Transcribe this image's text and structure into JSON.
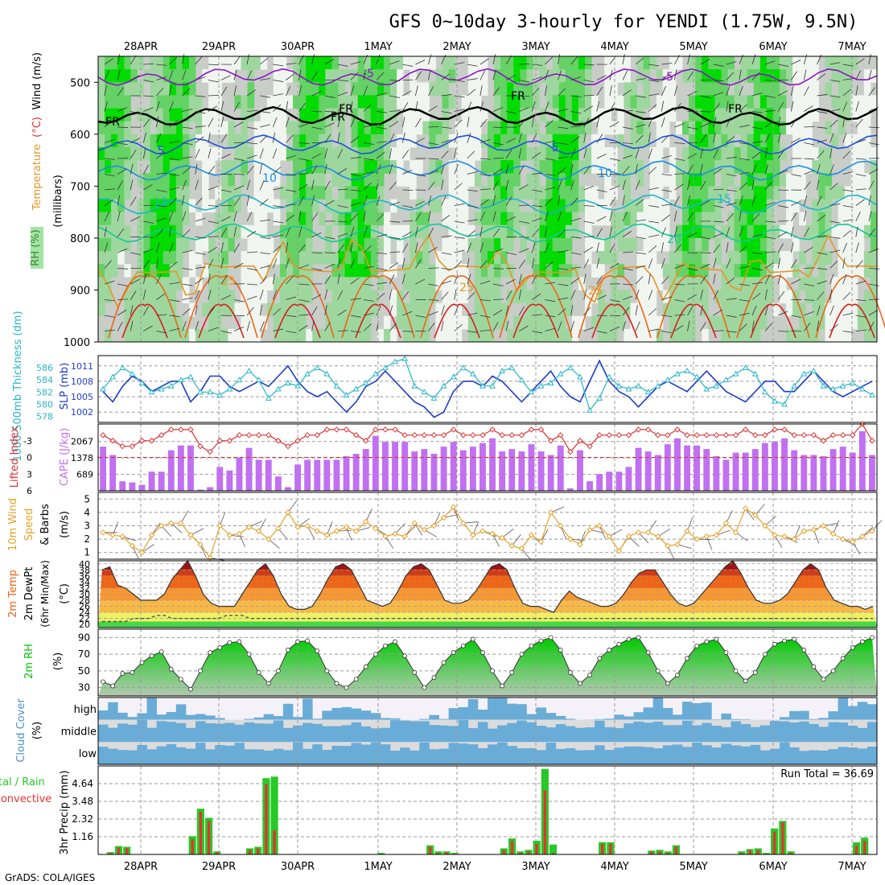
{
  "title": "GFS 0~10day 3-hourly for YENDI (1.75W, 9.5N)",
  "credit": "GrADS: COLA/IGES",
  "dates": [
    "28APR",
    "29APR",
    "30APR",
    "1MAY",
    "2MAY",
    "3MAY",
    "4MAY",
    "5MAY",
    "6MAY",
    "7MAY"
  ],
  "colors": {
    "rh_dark": "#00dc00",
    "rh_mid": "#64d264",
    "rh_light": "#9ed79e",
    "rh_pale": "#c8cdc8",
    "rh_white": "#f0f5f0",
    "slp": "#1e3cc8",
    "thickness": "#28b4c8",
    "lifted": "#dc3232",
    "cape": "#c070f0",
    "wind10": "#e6a028",
    "temp_warm": "#f06414",
    "temp_hot": "#a01414",
    "dew_band": "#f0f064",
    "rh2m": "#00c800",
    "cloud": "#6aacd8",
    "cloud_gap": "#dcdcdc",
    "rain_total": "#28c828",
    "rain_conv": "#e63232"
  },
  "chart_data": [
    {
      "name": "upper",
      "type": "heatmap",
      "ylabel_parts": [
        "RH (%)",
        "Temperature",
        "(°C)",
        "Wind",
        "(m/s)"
      ],
      "ylabel_sub": "(millibars)",
      "yticks": [
        500,
        600,
        700,
        800,
        900,
        1000
      ],
      "ylim": [
        450,
        1000
      ],
      "isotherm_labels": [
        "-5",
        "-5",
        "FR",
        "FR",
        "FR",
        "FR",
        "FR",
        "5",
        "5",
        "10",
        "10",
        "15",
        "15",
        "20",
        "25",
        "25",
        "25"
      ],
      "isotherms": [
        {
          "value": -5,
          "p": 490
        },
        {
          "value": 0,
          "p": 565
        },
        {
          "value": 5,
          "p": 620
        },
        {
          "value": 10,
          "p": 670
        },
        {
          "value": 15,
          "p": 735
        },
        {
          "value": 20,
          "p": 790
        },
        {
          "value": 25,
          "p": 860
        }
      ]
    },
    {
      "name": "slp_thickness",
      "type": "line",
      "ylabel_left": "1000-500mb Thickness (dm)",
      "ylabel_right": "SLP (mb)",
      "yticks_left": [
        578,
        580,
        582,
        584,
        586
      ],
      "yticks_right": [
        1002,
        1005,
        1008,
        1011
      ],
      "slp": [
        1006,
        1004,
        1007,
        1009,
        1008,
        1006,
        1007,
        1008,
        1008,
        1004,
        1006,
        1009,
        1009,
        1007,
        1006,
        1007,
        1008,
        1007,
        1009,
        1011,
        1008,
        1006,
        1005,
        1006,
        1004,
        1002,
        1004,
        1007,
        1008,
        1010,
        1008,
        1006,
        1004,
        1003,
        1001,
        1002,
        1006,
        1008,
        1008,
        1007,
        1009,
        1008,
        1006,
        1004,
        1006,
        1008,
        1010,
        1007,
        1005,
        1004,
        1008,
        1012,
        1008,
        1006,
        1005,
        1003,
        1005,
        1007,
        1008,
        1007,
        1006,
        1008,
        1010,
        1008,
        1006,
        1005,
        1004,
        1006,
        1008,
        1008,
        1006,
        1006,
        1008,
        1010,
        1008,
        1006,
        1005,
        1006,
        1007,
        1008
      ],
      "thickness": [
        582.5,
        584.5,
        586,
        585,
        583.5,
        582,
        582.5,
        583,
        584,
        584.5,
        582,
        582,
        581.5,
        582.5,
        584,
        585.5,
        584,
        581,
        582.5,
        583.5,
        583,
        585,
        586,
        585,
        583,
        581.5,
        582.5,
        583.5,
        585,
        586,
        587,
        587.5,
        583,
        582,
        581,
        583,
        584.5,
        586,
        585,
        583,
        583,
        585.5,
        586,
        584,
        582,
        583,
        583.5,
        585,
        586,
        584.5,
        579,
        581,
        584.5,
        583,
        582.5,
        583,
        582,
        583,
        584,
        585,
        585.5,
        584.5,
        582.5,
        583,
        584,
        585,
        586,
        585,
        582,
        580.5,
        580,
        583,
        585,
        585.5,
        583,
        582.5,
        583,
        583.5,
        582.5,
        581.5
      ]
    },
    {
      "name": "cape_lifted",
      "type": "bar",
      "ylabel_left": "Lifted Index",
      "ylabel_right": "CAPE (J/kg)",
      "yticks_left": [
        "-3",
        "0",
        "3",
        "6"
      ],
      "yticks_right": [
        "689",
        "1378",
        "2067"
      ],
      "cape": [
        1850,
        1500,
        400,
        350,
        250,
        800,
        800,
        1700,
        1900,
        1900,
        50,
        150,
        1000,
        850,
        1400,
        1800,
        1300,
        1300,
        600,
        150,
        1100,
        1300,
        1300,
        1300,
        1300,
        1450,
        1550,
        1750,
        2300,
        2050,
        2050,
        2050,
        1650,
        1750,
        1550,
        1850,
        2050,
        1700,
        1850,
        2000,
        2200,
        1650,
        1750,
        1650,
        1950,
        1650,
        1500,
        1900,
        100,
        1700,
        400,
        700,
        800,
        800,
        1000,
        1800,
        1650,
        1500,
        1950,
        2200,
        1900,
        1900,
        1750,
        1450,
        1300,
        1600,
        1600,
        1750,
        2000,
        2050,
        2200,
        1700,
        1500,
        1500,
        1450,
        1750,
        1850,
        1600,
        2500,
        1500
      ],
      "lifted": [
        -4,
        -3,
        -2,
        -2,
        -3,
        -3,
        -4,
        -5,
        -5,
        -5,
        -2,
        -1,
        -3,
        -3,
        -4,
        -4,
        -4,
        -4,
        -3,
        -2,
        -3,
        -4,
        -4,
        -5,
        -5,
        -5,
        -4,
        -3,
        -5,
        -5,
        -5,
        -4,
        -4,
        -4,
        -4,
        -4,
        -5,
        -4,
        -4,
        -4,
        -5,
        -4,
        -4,
        -4,
        -5,
        -5,
        -3,
        -4,
        -1,
        -3,
        -2,
        -4,
        -4,
        -4,
        -4,
        -5,
        -5,
        -4,
        -4,
        -5,
        -4,
        -4,
        -4,
        -4,
        -4,
        -4,
        -5,
        -4,
        -4,
        -5,
        -5,
        -4,
        -4,
        -4,
        -3,
        -4,
        -4,
        -4,
        -6,
        -3
      ]
    },
    {
      "name": "wind10m",
      "type": "line",
      "ylabel_parts": [
        "10m Wind",
        "Speed",
        "& Barbs",
        "(m/s)"
      ],
      "yticks": [
        1,
        2,
        3,
        4,
        5
      ],
      "ylim": [
        0.5,
        5.5
      ],
      "speed": [
        2.5,
        2.3,
        2.2,
        1.5,
        1.0,
        2.3,
        3.0,
        3.2,
        3.2,
        2.3,
        1.6,
        0.6,
        3.0,
        2.3,
        2.4,
        2.9,
        2.6,
        2.0,
        2.8,
        4.0,
        2.9,
        3.0,
        2.6,
        2.3,
        2.6,
        2.9,
        2.6,
        3.3,
        2.8,
        2.2,
        2.4,
        2.2,
        3.2,
        2.7,
        3.0,
        3.6,
        4.4,
        3.2,
        2.3,
        2.6,
        2.4,
        2.1,
        1.5,
        1.3,
        2.3,
        1.8,
        4.0,
        3.0,
        2.0,
        1.6,
        2.7,
        3.0,
        2.2,
        1.1,
        2.2,
        2.5,
        2.5,
        2.2,
        1.5,
        1.6,
        2.6,
        2.0,
        2.2,
        2.3,
        3.2,
        2.5,
        4.3,
        3.8,
        3.0,
        2.3,
        2.2,
        2.0,
        2.6,
        2.7,
        3.0,
        2.4,
        2.0,
        1.8,
        2.2,
        2.6
      ]
    },
    {
      "name": "temp2m",
      "type": "area",
      "ylabel_parts": [
        "2m Temp",
        "2m DewPt",
        "(6hr Min/Max)",
        "(°C)"
      ],
      "yticks": [
        20,
        22,
        24,
        26,
        28,
        30,
        32,
        34,
        36,
        38,
        40
      ],
      "ylim": [
        19,
        41
      ],
      "temp": [
        38,
        39,
        33,
        32,
        30,
        28,
        28,
        28,
        30,
        35,
        38,
        41,
        36,
        30,
        27,
        26,
        26,
        26,
        30,
        34,
        38,
        40,
        36,
        30,
        26,
        25,
        25,
        26,
        30,
        35,
        39,
        40,
        38,
        33,
        28,
        27,
        26,
        27,
        31,
        36,
        39,
        40,
        38,
        33,
        28,
        27,
        27,
        28,
        31,
        35,
        39,
        40,
        38,
        32,
        27,
        26,
        26,
        25,
        24,
        28,
        31,
        29,
        28,
        27,
        26,
        26,
        27,
        30,
        34,
        37,
        38,
        38,
        34,
        30,
        27,
        26,
        27,
        30,
        33,
        36,
        39,
        41,
        37,
        32,
        28,
        27,
        27,
        28,
        30,
        34,
        38,
        40,
        38,
        32,
        28,
        27,
        26,
        26,
        25,
        26
      ],
      "dewpt": [
        21,
        21,
        21,
        21,
        22,
        22,
        22,
        23,
        23,
        22,
        22,
        22,
        22,
        22,
        22,
        22,
        23,
        23,
        23,
        22,
        22,
        22,
        22,
        22,
        22,
        22,
        22,
        22,
        22,
        22,
        22,
        22,
        22,
        22,
        22,
        22,
        22,
        22,
        22,
        22,
        22,
        22,
        22,
        22,
        22,
        22,
        22,
        22,
        22,
        22,
        22,
        22,
        22,
        22,
        22,
        22,
        22,
        22,
        22,
        22,
        22,
        22,
        22,
        22,
        22,
        22,
        22,
        22,
        22,
        22,
        22,
        22,
        22,
        22,
        22,
        22,
        22,
        22,
        22,
        22,
        22,
        22,
        22,
        22,
        22,
        22,
        22,
        22,
        22,
        22,
        22,
        22,
        22,
        22,
        22,
        22,
        22,
        22,
        22,
        22
      ]
    },
    {
      "name": "rh2m",
      "type": "area",
      "ylabel_parts": [
        "2m RH",
        "(%)"
      ],
      "yticks": [
        30,
        50,
        70,
        90
      ],
      "ylim": [
        20,
        100
      ],
      "rh": [
        37,
        32,
        47,
        48,
        60,
        68,
        73,
        52,
        40,
        28,
        50,
        72,
        78,
        84,
        85,
        70,
        48,
        35,
        50,
        75,
        85,
        86,
        74,
        50,
        35,
        30,
        40,
        55,
        70,
        80,
        85,
        68,
        48,
        30,
        42,
        60,
        72,
        80,
        88,
        72,
        50,
        32,
        48,
        70,
        80,
        86,
        90,
        75,
        48,
        35,
        45,
        65,
        75,
        82,
        88,
        90,
        72,
        50,
        35,
        45,
        65,
        80,
        85,
        88,
        72,
        50,
        38,
        48,
        70,
        82,
        86,
        88,
        75,
        55,
        40,
        50,
        65,
        78,
        85,
        90
      ]
    },
    {
      "name": "cloud",
      "type": "heatmap",
      "ylabel_parts": [
        "Cloud Cover",
        "(%)"
      ],
      "rows": [
        "high",
        "middle",
        "low"
      ]
    },
    {
      "name": "precip",
      "type": "bar",
      "ylabel_parts": [
        "3hr Precip (mm)"
      ],
      "ylabel_left_parts": [
        "Total / Rain",
        "Convective"
      ],
      "yticks": [
        "1.16",
        "2.32",
        "3.48",
        "4.64"
      ],
      "ylim": [
        0,
        5.8
      ],
      "run_total_label": "Run Total = 36.69",
      "total": [
        0,
        0.15,
        0.55,
        0.5,
        0,
        0,
        0,
        0,
        0,
        0,
        0,
        1.2,
        3.0,
        2.4,
        0.2,
        0,
        0,
        0,
        0.4,
        0.5,
        5.0,
        5.1,
        0,
        0,
        0,
        0,
        0,
        0,
        0,
        0,
        0,
        0,
        0,
        0,
        0.1,
        0,
        0,
        0,
        0,
        0,
        0.6,
        0.2,
        0.2,
        0.1,
        0,
        0,
        0,
        0,
        0,
        0.4,
        1.05,
        0.2,
        0.3,
        0.9,
        5.6,
        0.65,
        0,
        0,
        0,
        0,
        0,
        0.8,
        0.8,
        0,
        0,
        0,
        0,
        0.25,
        0.3,
        0.2,
        0.6,
        0,
        0,
        0,
        0,
        0,
        0,
        0,
        0.2,
        0.35,
        0.4,
        0.1,
        1.7,
        2.2,
        0.2,
        0,
        0,
        0,
        0,
        0,
        0,
        0,
        0.8,
        1.1,
        0
      ],
      "conv": [
        0,
        0.1,
        0.45,
        0.4,
        0,
        0,
        0,
        0,
        0,
        0,
        0,
        1.0,
        2.8,
        2.2,
        0.15,
        0,
        0,
        0,
        0.3,
        0.4,
        4.6,
        1.6,
        0,
        0,
        0,
        0,
        0,
        0,
        0,
        0,
        0,
        0,
        0,
        0,
        0.05,
        0,
        0,
        0,
        0,
        0,
        0.5,
        0.1,
        0.15,
        0.05,
        0,
        0,
        0,
        0,
        0,
        0.3,
        0.9,
        0.1,
        0.2,
        0.7,
        4.2,
        0.1,
        0,
        0,
        0,
        0,
        0,
        0.7,
        0.7,
        0,
        0,
        0,
        0,
        0.2,
        0.2,
        0.1,
        0.5,
        0,
        0,
        0,
        0,
        0,
        0,
        0,
        0.1,
        0.3,
        0.3,
        0.05,
        1.5,
        2.1,
        0.1,
        0,
        0,
        0,
        0,
        0,
        0,
        0,
        0.6,
        0.9,
        0
      ]
    }
  ]
}
